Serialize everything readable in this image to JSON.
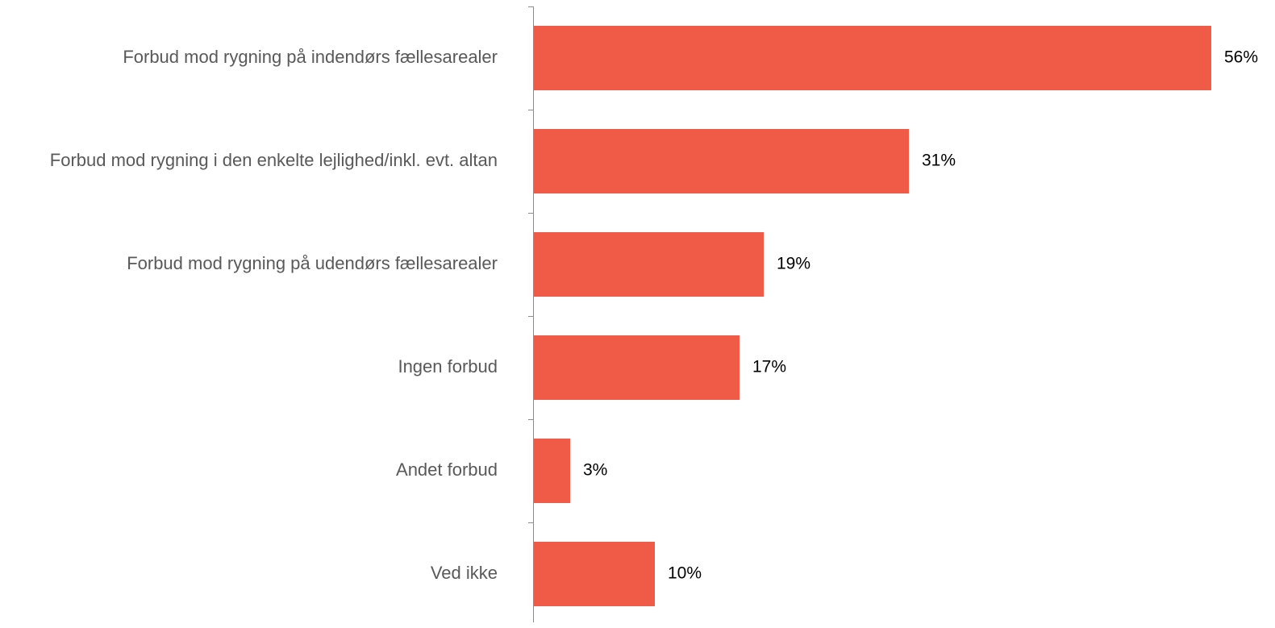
{
  "chart_data": {
    "type": "barh",
    "categories": [
      "Forbud mod rygning på indendørs fællesarealer",
      "Forbud mod rygning i den enkelte lejlighed/inkl. evt. altan",
      "Forbud mod rygning på udendørs fællesarealer",
      "Ingen forbud",
      "Andet forbud",
      "Ved ikke"
    ],
    "values": [
      56,
      31,
      19,
      17,
      3,
      10
    ],
    "value_labels": [
      "56%",
      "31%",
      "19%",
      "17%",
      "3%",
      "10%"
    ],
    "color": "#ef5b47"
  }
}
